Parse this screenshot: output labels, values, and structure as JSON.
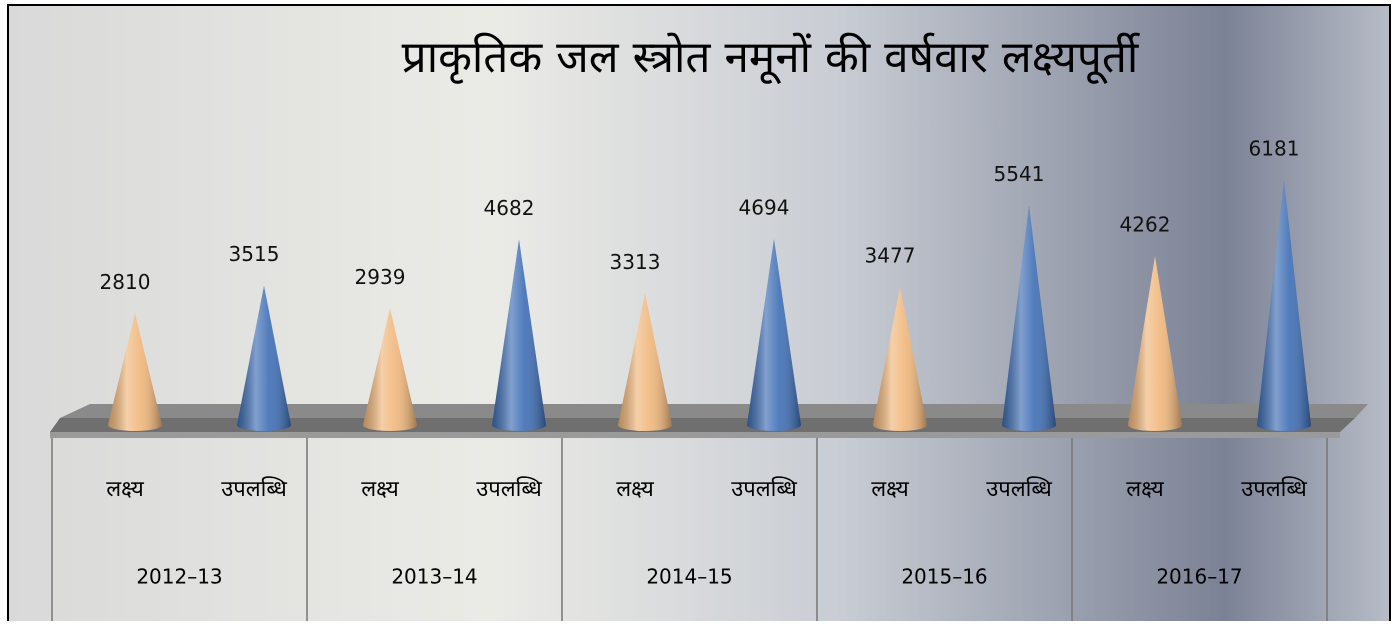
{
  "chart_data": {
    "type": "cone-bar",
    "title": "प्राकृतिक जल स्त्रोत नमूनों की वर्षवार लक्ष्यपूर्ती",
    "categories": [
      "2012–13",
      "2013–14",
      "2014–15",
      "2015–16",
      "2016–17"
    ],
    "series": [
      {
        "name": "लक्ष्य",
        "color": "#f0b67a",
        "values": [
          2810,
          2939,
          3313,
          3477,
          4262
        ]
      },
      {
        "name": "उपलब्धि",
        "color": "#3d6db4",
        "values": [
          3515,
          4682,
          4694,
          5541,
          6181
        ]
      }
    ]
  }
}
